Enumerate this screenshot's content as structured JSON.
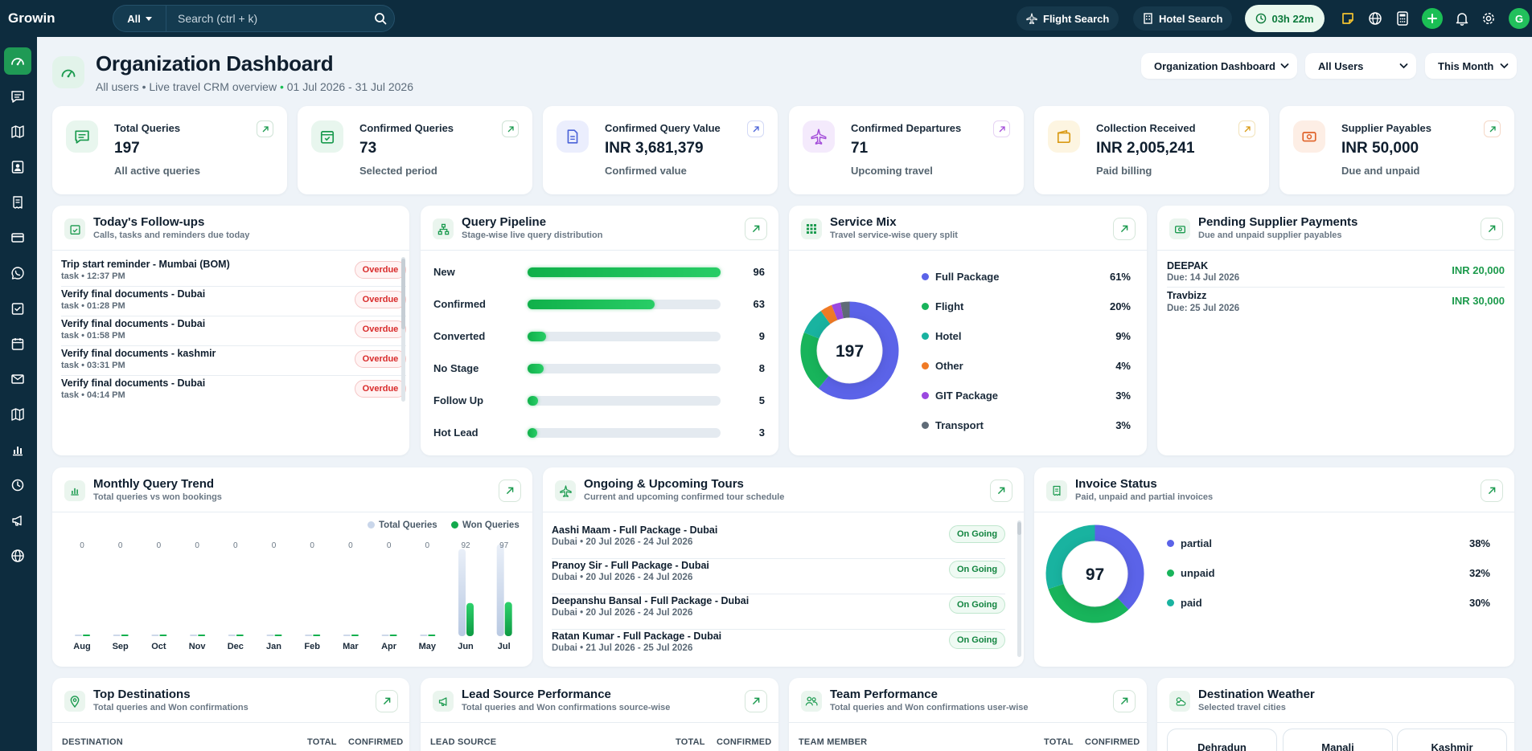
{
  "app": {
    "brand": "Growin"
  },
  "search": {
    "scope": "All",
    "placeholder": "Search (ctrl + k)"
  },
  "topbar": {
    "flight_search": "Flight Search",
    "hotel_search": "Hotel Search",
    "timer": "03h 22m",
    "avatar_initial": "G"
  },
  "header": {
    "title": "Organization Dashboard",
    "subtitle": "All users • Live travel CRM overview",
    "date_range": "01 Jul 2026 - 31 Jul 2026",
    "dashboard_select": "Organization Dashboard",
    "users_select": "All Users",
    "period_select": "This Month"
  },
  "kpis": [
    {
      "title": "Total Queries",
      "value": "197",
      "sub": "All active queries",
      "icon": "chat-icon",
      "color": "#1a9a4e"
    },
    {
      "title": "Confirmed Queries",
      "value": "73",
      "sub": "Selected period",
      "icon": "calendar-check-icon",
      "color": "#1a9a4e"
    },
    {
      "title": "Confirmed Query Value",
      "value": "INR 3,681,379",
      "sub": "Confirmed value",
      "icon": "document-icon",
      "color": "#4b63d8"
    },
    {
      "title": "Confirmed Departures",
      "value": "71",
      "sub": "Upcoming travel",
      "icon": "plane-icon",
      "color": "#a34dd9"
    },
    {
      "title": "Collection Received",
      "value": "INR 2,005,241",
      "sub": "Paid billing",
      "icon": "wallet-icon",
      "color": "#d99a14"
    },
    {
      "title": "Supplier Payables",
      "value": "INR 50,000",
      "sub": "Due and unpaid",
      "icon": "cash-icon",
      "color": "#e0632a"
    }
  ],
  "followups": {
    "title": "Today's Follow-ups",
    "subtitle": "Calls, tasks and reminders due today",
    "items": [
      {
        "title": "Trip start reminder - Mumbai (BOM)",
        "meta": "task • 12:37 PM",
        "status": "Overdue"
      },
      {
        "title": "Verify final documents - Dubai",
        "meta": "task • 01:28 PM",
        "status": "Overdue"
      },
      {
        "title": "Verify final documents - Dubai",
        "meta": "task • 01:58 PM",
        "status": "Overdue"
      },
      {
        "title": "Verify final documents - kashmir",
        "meta": "task • 03:31 PM",
        "status": "Overdue"
      },
      {
        "title": "Verify final documents - Dubai",
        "meta": "task • 04:14 PM",
        "status": "Overdue"
      }
    ]
  },
  "pipeline": {
    "title": "Query Pipeline",
    "subtitle": "Stage-wise live query distribution",
    "max": 96,
    "stages": [
      {
        "label": "New",
        "value": 96
      },
      {
        "label": "Confirmed",
        "value": 63
      },
      {
        "label": "Converted",
        "value": 9
      },
      {
        "label": "No Stage",
        "value": 8
      },
      {
        "label": "Follow Up",
        "value": 5
      },
      {
        "label": "Hot Lead",
        "value": 3
      }
    ]
  },
  "service_mix": {
    "title": "Service Mix",
    "subtitle": "Travel service-wise query split",
    "total": "197",
    "items": [
      {
        "label": "Full Package",
        "pct": "61%",
        "value": 61,
        "color": "#5b63e8"
      },
      {
        "label": "Flight",
        "pct": "20%",
        "value": 20,
        "color": "#18b45b"
      },
      {
        "label": "Hotel",
        "pct": "9%",
        "value": 9,
        "color": "#19b3a0"
      },
      {
        "label": "Other",
        "pct": "4%",
        "value": 4,
        "color": "#f07a25"
      },
      {
        "label": "GIT Package",
        "pct": "3%",
        "value": 3,
        "color": "#9b48e0"
      },
      {
        "label": "Transport",
        "pct": "3%",
        "value": 3,
        "color": "#5f6b77"
      }
    ]
  },
  "pending_supplier": {
    "title": "Pending Supplier Payments",
    "subtitle": "Due and unpaid supplier payables",
    "items": [
      {
        "name": "DEEPAK",
        "due": "Due: 14 Jul 2026",
        "amount": "INR 20,000"
      },
      {
        "name": "Travbizz",
        "due": "Due: 25 Jul 2026",
        "amount": "INR 30,000"
      }
    ]
  },
  "trend": {
    "title": "Monthly Query Trend",
    "subtitle": "Total queries vs won bookings",
    "legend_total": "Total Queries",
    "legend_won": "Won Queries"
  },
  "chart_data": {
    "type": "bar",
    "categories": [
      "Aug",
      "Sep",
      "Oct",
      "Nov",
      "Dec",
      "Jan",
      "Feb",
      "Mar",
      "Apr",
      "May",
      "Jun",
      "Jul"
    ],
    "series": [
      {
        "name": "Total Queries",
        "values": [
          0,
          0,
          0,
          0,
          0,
          0,
          0,
          0,
          0,
          0,
          92,
          97
        ]
      },
      {
        "name": "Won Queries",
        "values": [
          0,
          0,
          0,
          0,
          0,
          0,
          0,
          0,
          0,
          0,
          35,
          36
        ]
      }
    ],
    "top_labels": [
      "0",
      "0",
      "0",
      "0",
      "0",
      "0",
      "0",
      "0",
      "0",
      "0",
      "92",
      "97"
    ],
    "legend": "top-right"
  },
  "tours": {
    "title": "Ongoing & Upcoming Tours",
    "subtitle": "Current and upcoming confirmed tour schedule",
    "items": [
      {
        "title": "Aashi Maam - Full Package - Dubai",
        "meta": "Dubai • 20 Jul 2026 - 24 Jul 2026",
        "status": "On Going"
      },
      {
        "title": "Pranoy Sir - Full Package - Dubai",
        "meta": "Dubai • 20 Jul 2026 - 24 Jul 2026",
        "status": "On Going"
      },
      {
        "title": "Deepanshu Bansal - Full Package - Dubai",
        "meta": "Dubai • 20 Jul 2026 - 24 Jul 2026",
        "status": "On Going"
      },
      {
        "title": "Ratan Kumar - Full Package - Dubai",
        "meta": "Dubai • 21 Jul 2026 - 25 Jul 2026",
        "status": "On Going"
      }
    ]
  },
  "invoice": {
    "title": "Invoice Status",
    "subtitle": "Paid, unpaid and partial invoices",
    "total": "97",
    "items": [
      {
        "label": "partial",
        "pct": "38%",
        "value": 38,
        "color": "#5b63e8"
      },
      {
        "label": "unpaid",
        "pct": "32%",
        "value": 32,
        "color": "#18b45b"
      },
      {
        "label": "paid",
        "pct": "30%",
        "value": 30,
        "color": "#19b3a0"
      }
    ]
  },
  "destinations": {
    "title": "Top Destinations",
    "subtitle": "Total queries and Won confirmations",
    "col1": "DESTINATION",
    "col2": "TOTAL",
    "col3": "CONFIRMED"
  },
  "lead_source": {
    "title": "Lead Source Performance",
    "subtitle": "Total queries and Won confirmations source-wise",
    "col1": "LEAD SOURCE",
    "col2": "TOTAL",
    "col3": "CONFIRMED"
  },
  "team": {
    "title": "Team Performance",
    "subtitle": "Total queries and Won confirmations user-wise",
    "col1": "TEAM MEMBER",
    "col2": "TOTAL",
    "col3": "CONFIRMED"
  },
  "weather": {
    "title": "Destination Weather",
    "subtitle": "Selected travel cities",
    "cities": [
      "Dehradun",
      "Manali",
      "Kashmir"
    ]
  }
}
